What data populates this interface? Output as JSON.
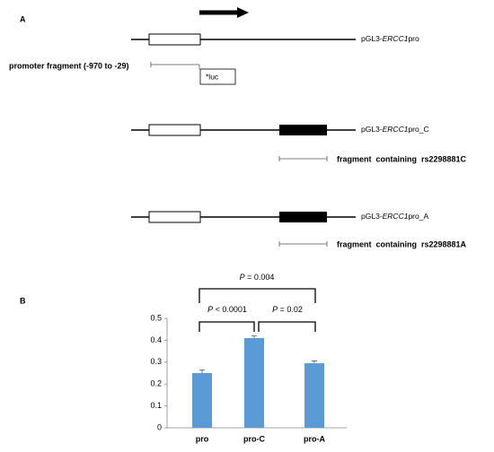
{
  "panel_a": {
    "label": "A",
    "constructs": [
      {
        "prefix": "pGL3-",
        "gene": "ERCC1",
        "suffix": "pro"
      },
      {
        "prefix": "pGL3-",
        "gene": "ERCC1",
        "suffix": "pro_C"
      },
      {
        "prefix": "pGL3-",
        "gene": "ERCC1",
        "suffix": "pro_A"
      }
    ],
    "promoter_fragment": "promoter fragment (-970 to -29)",
    "luc": "*luc",
    "fragment_c": "fragment  containing  rs2298881C",
    "fragment_a": "fragment  containing  rs2298881A"
  },
  "chart_data": {
    "type": "bar",
    "label": "B",
    "categories": [
      "pro",
      "pro-C",
      "pro-A"
    ],
    "values": [
      0.25,
      0.41,
      0.295
    ],
    "errors": [
      0.015,
      0.01,
      0.01
    ],
    "color": "#5b9bd5",
    "ylim": [
      0,
      0.5
    ],
    "yticks": [
      0,
      0.1,
      0.2,
      0.3,
      0.4,
      0.5
    ],
    "annotations": [
      {
        "p": "P",
        "text": " = 0.004"
      },
      {
        "p": "P",
        "text": " < 0.0001"
      },
      {
        "p": "P",
        "text": " = 0.02"
      }
    ]
  }
}
